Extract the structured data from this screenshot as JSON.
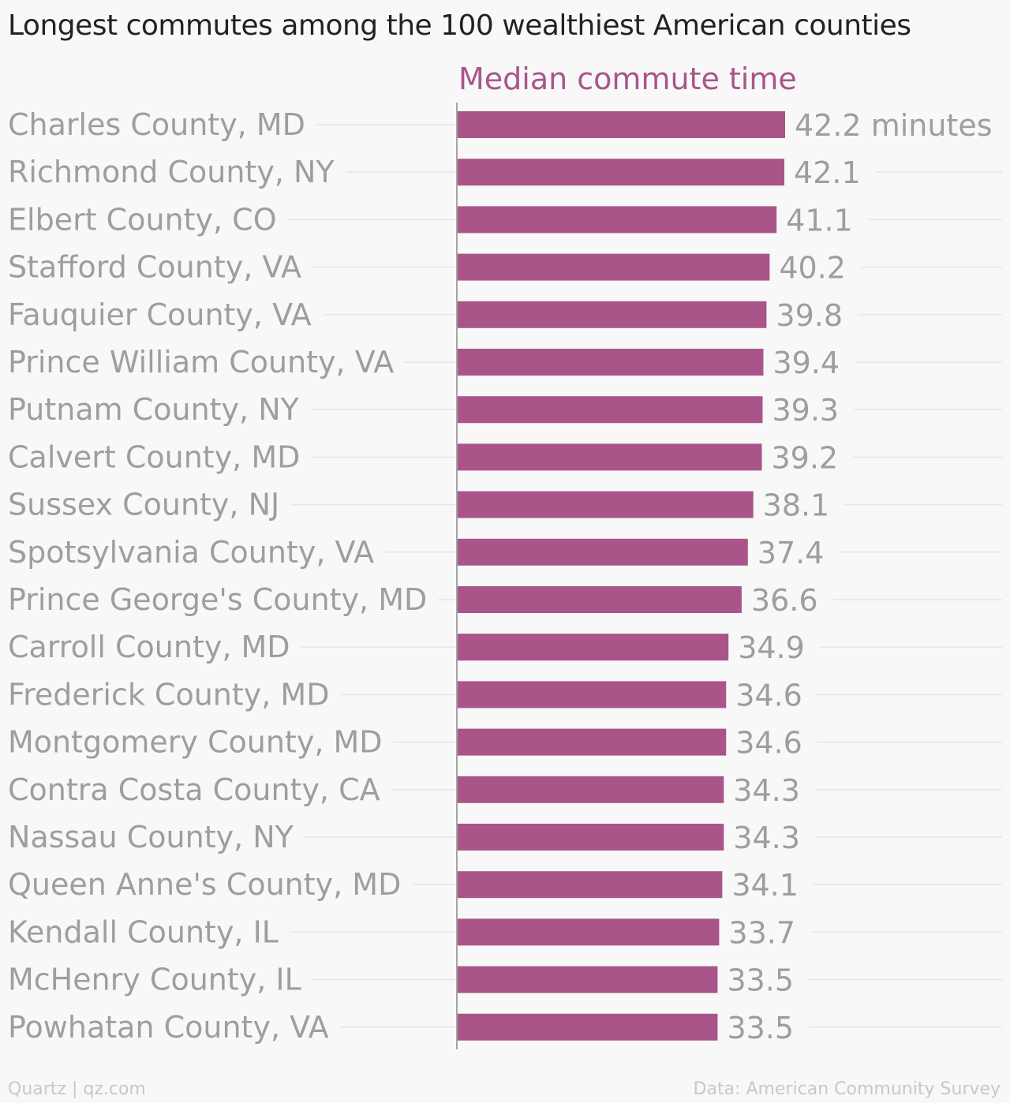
{
  "title": "Longest commutes among the 100 wealthiest American counties",
  "footer": {
    "source_left": "Quartz | qz.com",
    "source_right": "Data: American Community Survey"
  },
  "colors": {
    "bar": "#a9558a",
    "label": "#9e9e9e",
    "grid": "#e6e6e6",
    "axis": "#888888",
    "background": "#f8f8f8"
  },
  "chart_data": {
    "type": "bar",
    "orientation": "horizontal",
    "series": [
      {
        "name": "Median commute time",
        "values": [
          42.2,
          42.1,
          41.1,
          40.2,
          39.8,
          39.4,
          39.3,
          39.2,
          38.1,
          37.4,
          36.6,
          34.9,
          34.6,
          34.6,
          34.3,
          34.3,
          34.1,
          33.7,
          33.5,
          33.5
        ]
      }
    ],
    "categories": [
      "Charles County, MD",
      "Richmond County, NY",
      "Elbert County, CO",
      "Stafford County, VA",
      "Fauquier County, VA",
      "Prince William County, VA",
      "Putnam County, NY",
      "Calvert County, MD",
      "Sussex County, NJ",
      "Spotsylvania County, VA",
      "Prince George's County, MD",
      "Carroll County, MD",
      "Frederick County, MD",
      "Montgomery County, MD",
      "Contra Costa County, CA",
      "Nassau County, NY",
      "Queen Anne's County, MD",
      "Kendall County, IL",
      "McHenry County, IL",
      "Powhatan County, VA"
    ],
    "value_labels": [
      "42.2 minutes",
      "42.1",
      "41.1",
      "40.2",
      "39.8",
      "39.4",
      "39.3",
      "39.2",
      "38.1",
      "37.4",
      "36.6",
      "34.9",
      "34.6",
      "34.6",
      "34.3",
      "34.3",
      "34.1",
      "33.7",
      "33.5",
      "33.5"
    ],
    "xlim": [
      0,
      42.2
    ],
    "grid": true,
    "legend": "none"
  }
}
